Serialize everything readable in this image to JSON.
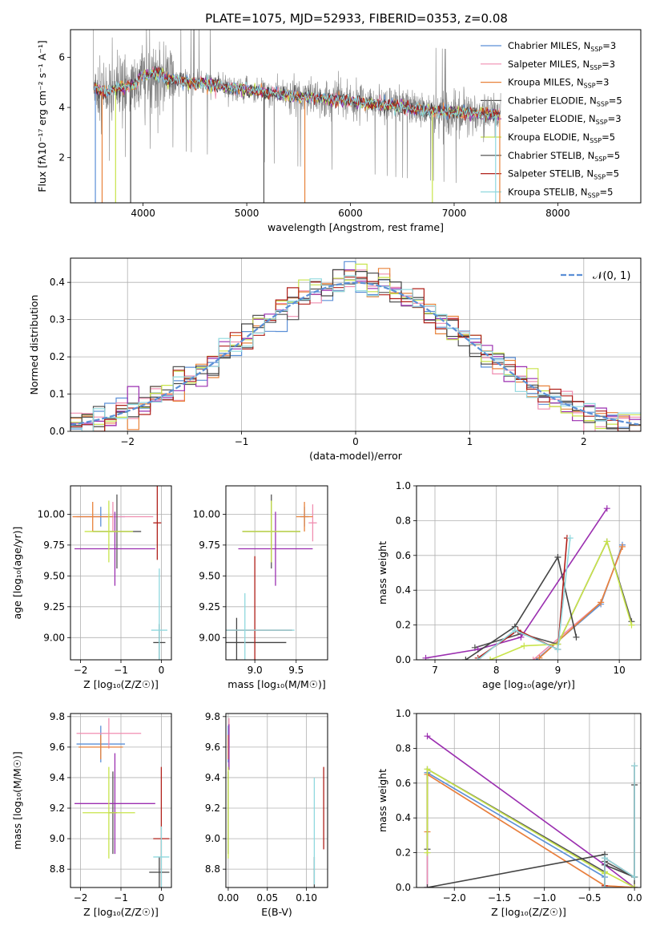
{
  "figure_title": "PLATE=1075, MJD=52933, FIBERID=0353, z=0.08",
  "legend_models": [
    {
      "label": "Chabrier MILES, N",
      "sub": "SSP",
      "suffix": "=3",
      "color": "#5b8fd6"
    },
    {
      "label": "Salpeter MILES, N",
      "sub": "SSP",
      "suffix": "=3",
      "color": "#f08eb0"
    },
    {
      "label": "Kroupa MILES, N",
      "sub": "SSP",
      "suffix": "=3",
      "color": "#e8823a"
    },
    {
      "label": "Chabrier ELODIE, N",
      "sub": "SSP",
      "suffix": "=5",
      "color": "#555555"
    },
    {
      "label": "Salpeter ELODIE, N",
      "sub": "SSP",
      "suffix": "=3",
      "color": "#9b2fb0"
    },
    {
      "label": "Kroupa ELODIE, N",
      "sub": "SSP",
      "suffix": "=5",
      "color": "#c8e44a"
    },
    {
      "label": "Chabrier STELIB, N",
      "sub": "SSP",
      "suffix": "=5",
      "color": "#444444"
    },
    {
      "label": "Salpeter STELIB, N",
      "sub": "SSP",
      "suffix": "=5",
      "color": "#b0201a"
    },
    {
      "label": "Kroupa STELIB, N",
      "sub": "SSP",
      "suffix": "=5",
      "color": "#8fd8de"
    }
  ],
  "chart_data": [
    {
      "id": "spectrum",
      "type": "line",
      "xlabel": "wavelength [Angstrom, rest frame]",
      "ylabel": "Flux [fλ10⁻¹⁷ erg cm⁻² s⁻¹ A⁻¹]",
      "xlim": [
        3300,
        8800
      ],
      "ylim": [
        0.2,
        7.1
      ],
      "xticks": [
        "4000",
        "5000",
        "6000",
        "7000",
        "8000"
      ],
      "yticks": [
        "2",
        "4",
        "6"
      ],
      "data_color": "#808080",
      "model_color": "#74d4dc",
      "data_range": [
        3520,
        7450
      ],
      "continuum": {
        "x": [
          3520,
          3600,
          3900,
          4100,
          4500,
          5000,
          5500,
          6000,
          6500,
          7000,
          7450
        ],
        "y": [
          4.85,
          4.6,
          4.9,
          5.2,
          5.0,
          4.7,
          4.45,
          4.25,
          4.0,
          3.8,
          3.7
        ]
      }
    },
    {
      "id": "residuals",
      "type": "step",
      "xlabel": "(data-model)/error",
      "ylabel": "Normed distribution",
      "xlim": [
        -2.5,
        2.5
      ],
      "ylim": [
        0,
        0.465
      ],
      "xticks": [
        "−2",
        "−1",
        "0",
        "1",
        "2"
      ],
      "yticks": [
        "0.0",
        "0.1",
        "0.2",
        "0.3",
        "0.4"
      ],
      "legend": "𝒩(0, 1)",
      "gaussian_color": "#5b8fd6"
    },
    {
      "id": "age_vs_Z",
      "type": "errorbar",
      "xlabel": "Z [log₁₀(Z/Z☉)]",
      "ylabel": "age  [log₁₀(age/yr)]",
      "xlim": [
        -2.25,
        0.25
      ],
      "ylim": [
        8.82,
        10.23
      ],
      "xticks": [
        "−2",
        "−1",
        "0"
      ],
      "yticks": [
        "9.00",
        "9.25",
        "9.50",
        "9.75",
        "10.00"
      ],
      "points": [
        {
          "x": -1.5,
          "xerr": 0.6,
          "y": 9.98,
          "yerr": 0.08,
          "c": 0
        },
        {
          "x": -1.2,
          "xerr": 1.0,
          "y": 9.98,
          "yerr": 0.12,
          "c": 1
        },
        {
          "x": -1.7,
          "xerr": 0.5,
          "y": 9.98,
          "yerr": 0.12,
          "c": 2
        },
        {
          "x": -1.1,
          "xerr": 0.6,
          "y": 9.86,
          "yerr": 0.3,
          "c": 3
        },
        {
          "x": -1.15,
          "xerr": 1.0,
          "y": 9.72,
          "yerr": 0.3,
          "c": 4
        },
        {
          "x": -1.3,
          "xerr": 0.6,
          "y": 9.86,
          "yerr": 0.25,
          "c": 5
        },
        {
          "x": -0.05,
          "xerr": 0.15,
          "y": 8.96,
          "yerr": 0.15,
          "c": 6
        },
        {
          "x": -0.1,
          "xerr": 0.1,
          "y": 9.93,
          "yerr": 0.3,
          "c": 7
        },
        {
          "x": -0.05,
          "xerr": 0.2,
          "y": 9.06,
          "yerr": 0.5,
          "c": 8
        }
      ]
    },
    {
      "id": "age_vs_mass",
      "type": "errorbar",
      "xlabel": "mass [log₁₀(M/M☉)]",
      "ylabel": "",
      "xlim": [
        8.65,
        9.88
      ],
      "ylim": [
        8.82,
        10.23
      ],
      "xticks": [
        "9.0",
        "9.5"
      ],
      "yticks": [
        "9.00",
        "9.25",
        "9.50",
        "9.75",
        "10.00"
      ],
      "points": [
        {
          "x": 9.6,
          "xerr": 0.05,
          "y": 9.98,
          "yerr": 0.08,
          "c": 0
        },
        {
          "x": 9.7,
          "xerr": 0.05,
          "y": 9.93,
          "yerr": 0.15,
          "c": 1
        },
        {
          "x": 9.6,
          "xerr": 0.1,
          "y": 9.98,
          "yerr": 0.12,
          "c": 2
        },
        {
          "x": 9.2,
          "xerr": 0.35,
          "y": 9.86,
          "yerr": 0.3,
          "c": 3
        },
        {
          "x": 9.25,
          "xerr": 0.45,
          "y": 9.72,
          "yerr": 0.3,
          "c": 4
        },
        {
          "x": 9.2,
          "xerr": 0.35,
          "y": 9.86,
          "yerr": 0.25,
          "c": 5
        },
        {
          "x": 8.78,
          "xerr": 0.6,
          "y": 8.96,
          "yerr": 0.2,
          "c": 6
        },
        {
          "x": 9.0,
          "xerr": 0.45,
          "y": 9.06,
          "yerr": 0.6,
          "c": 7
        },
        {
          "x": 8.88,
          "xerr": 0.6,
          "y": 9.06,
          "yerr": 0.3,
          "c": 8
        }
      ]
    },
    {
      "id": "weight_vs_age",
      "type": "line",
      "xlabel": "age  [log₁₀(age/yr)]",
      "ylabel": "mass weight",
      "xlim": [
        6.7,
        10.35
      ],
      "ylim": [
        0,
        1.0
      ],
      "xticks": [
        "7",
        "8",
        "9",
        "10"
      ],
      "yticks": [
        "0.0",
        "0.2",
        "0.4",
        "0.6",
        "0.8",
        "1.0"
      ],
      "series": [
        {
          "c": 0,
          "x": [
            8.65,
            9.7,
            10.05
          ],
          "y": [
            0.0,
            0.32,
            0.66
          ]
        },
        {
          "c": 1,
          "x": [
            8.6,
            9.7,
            10.05
          ],
          "y": [
            0.0,
            0.33,
            0.65
          ]
        },
        {
          "c": 2,
          "x": [
            8.7,
            9.7,
            10.05
          ],
          "y": [
            0.01,
            0.33,
            0.65
          ]
        },
        {
          "c": 3,
          "x": [
            7.65,
            8.4,
            9.0,
            9.8,
            10.2
          ],
          "y": [
            0.07,
            0.15,
            0.09,
            0.68,
            0.22
          ]
        },
        {
          "c": 4,
          "x": [
            6.85,
            7.7,
            8.4,
            9.8
          ],
          "y": [
            0.01,
            0.06,
            0.13,
            0.87
          ]
        },
        {
          "c": 5,
          "x": [
            7.9,
            8.45,
            9.0,
            9.8,
            10.2
          ],
          "y": [
            0.0,
            0.08,
            0.09,
            0.68,
            0.2
          ]
        },
        {
          "c": 6,
          "x": [
            7.5,
            8.3,
            9.0,
            9.3
          ],
          "y": [
            0.0,
            0.19,
            0.59,
            0.13
          ]
        },
        {
          "c": 7,
          "x": [
            7.7,
            8.35,
            9.0,
            9.15
          ],
          "y": [
            0.01,
            0.17,
            0.06,
            0.7
          ]
        },
        {
          "c": 8,
          "x": [
            7.7,
            8.3,
            9.0,
            9.2
          ],
          "y": [
            0.0,
            0.17,
            0.06,
            0.7
          ]
        }
      ]
    },
    {
      "id": "mass_vs_Z",
      "type": "errorbar",
      "xlabel": "Z [log₁₀(Z/Z☉)]",
      "ylabel": "mass [log₁₀(M/M☉)]",
      "xlim": [
        -2.25,
        0.25
      ],
      "ylim": [
        8.68,
        9.82
      ],
      "xticks": [
        "−2",
        "−1",
        "0"
      ],
      "yticks": [
        "8.8",
        "9.0",
        "9.2",
        "9.4",
        "9.6",
        "9.8"
      ],
      "points": [
        {
          "x": -1.5,
          "xerr": 0.6,
          "y": 9.62,
          "yerr": 0.12,
          "c": 0
        },
        {
          "x": -1.3,
          "xerr": 0.8,
          "y": 9.69,
          "yerr": 0.1,
          "c": 1
        },
        {
          "x": -1.5,
          "xerr": 0.55,
          "y": 9.6,
          "yerr": 0.08,
          "c": 2
        },
        {
          "x": -1.2,
          "xerr": 0.1,
          "y": 9.17,
          "yerr": 0.27,
          "c": 3
        },
        {
          "x": -1.15,
          "xerr": 1.0,
          "y": 9.23,
          "yerr": 0.33,
          "c": 4
        },
        {
          "x": -1.3,
          "xerr": 0.65,
          "y": 9.17,
          "yerr": 0.3,
          "c": 5
        },
        {
          "x": -0.05,
          "xerr": 0.25,
          "y": 8.78,
          "yerr": 0.1,
          "c": 6
        },
        {
          "x": 0.0,
          "xerr": 0.2,
          "y": 9.0,
          "yerr": 0.47,
          "c": 7
        },
        {
          "x": 0.0,
          "xerr": 0.2,
          "y": 8.88,
          "yerr": 0.2,
          "c": 8
        }
      ]
    },
    {
      "id": "mass_vs_ebv",
      "type": "errorbar",
      "xlabel": "E(B-V)",
      "ylabel": "",
      "xlim": [
        -0.003,
        0.127
      ],
      "ylim": [
        8.68,
        9.82
      ],
      "xticks": [
        "0.00",
        "0.05",
        "0.10"
      ],
      "yticks": [
        "8.8",
        "9.0",
        "9.2",
        "9.4",
        "9.6",
        "9.8"
      ],
      "points": [
        {
          "x": 0.0,
          "xerr": 0,
          "y": 9.62,
          "yerr": 0.12,
          "c": 0
        },
        {
          "x": 0.001,
          "xerr": 0,
          "y": 9.69,
          "yerr": 0.1,
          "c": 1
        },
        {
          "x": 0.0,
          "xerr": 0,
          "y": 9.6,
          "yerr": 0.08,
          "c": 2
        },
        {
          "x": 0.0,
          "xerr": 0,
          "y": 9.17,
          "yerr": 0.27,
          "c": 3
        },
        {
          "x": 0.001,
          "xerr": 0,
          "y": 9.6,
          "yerr": 0.15,
          "c": 4
        },
        {
          "x": 0.0,
          "xerr": 0,
          "y": 9.17,
          "yerr": 0.3,
          "c": 5
        },
        {
          "x": 0.11,
          "xerr": 0,
          "y": 8.78,
          "yerr": 0.1,
          "c": 6
        },
        {
          "x": 0.122,
          "xerr": 0,
          "y": 9.2,
          "yerr": 0.27,
          "c": 7
        },
        {
          "x": 0.11,
          "xerr": 0,
          "y": 9.05,
          "yerr": 0.35,
          "c": 8
        }
      ]
    },
    {
      "id": "weight_vs_Z",
      "type": "line",
      "xlabel": "Z [log₁₀(Z/Z☉)]",
      "ylabel": "mass weight",
      "xlim": [
        -2.42,
        0.07
      ],
      "ylim": [
        0,
        1.0
      ],
      "xticks": [
        "−2.0",
        "−1.5",
        "−1.0",
        "−0.5",
        "0.0"
      ],
      "yticks": [
        "0.0",
        "0.2",
        "0.4",
        "0.6",
        "0.8",
        "1.0"
      ],
      "series": [
        {
          "c": 0,
          "x": [
            -2.3,
            -2.3,
            -0.33,
            -0.33,
            0.0
          ],
          "y": [
            0.0,
            0.66,
            0.06,
            0.0,
            0.0
          ]
        },
        {
          "c": 1,
          "x": [
            -2.3,
            -2.3,
            -0.33,
            0.0
          ],
          "y": [
            0.0,
            0.65,
            0.01,
            0.0
          ]
        },
        {
          "c": 2,
          "x": [
            -2.3,
            -2.3,
            -0.33,
            0.0
          ],
          "y": [
            0.32,
            0.65,
            0.01,
            0.0
          ]
        },
        {
          "c": 3,
          "x": [
            -2.3,
            -2.3,
            -0.33,
            -0.33,
            0.0,
            0.0
          ],
          "y": [
            0.22,
            0.68,
            0.09,
            0.15,
            0.06,
            0.0
          ]
        },
        {
          "c": 4,
          "x": [
            -2.3,
            -0.33,
            0.0
          ],
          "y": [
            0.87,
            0.13,
            0.0
          ]
        },
        {
          "c": 5,
          "x": [
            -2.3,
            -2.3,
            -0.33,
            -0.33,
            0.0
          ],
          "y": [
            0.2,
            0.68,
            0.08,
            0.09,
            0.0
          ]
        },
        {
          "c": 6,
          "x": [
            -2.3,
            -0.33,
            -0.33,
            0.0,
            0.0
          ],
          "y": [
            0.0,
            0.19,
            0.13,
            0.06,
            0.59
          ]
        },
        {
          "c": 7,
          "x": [
            -0.33,
            -0.33,
            0.0,
            0.0
          ],
          "y": [
            0.01,
            0.17,
            0.06,
            0.7
          ]
        },
        {
          "c": 8,
          "x": [
            -0.33,
            -0.33,
            0.0,
            0.0
          ],
          "y": [
            0.0,
            0.17,
            0.06,
            0.7
          ]
        }
      ]
    }
  ]
}
